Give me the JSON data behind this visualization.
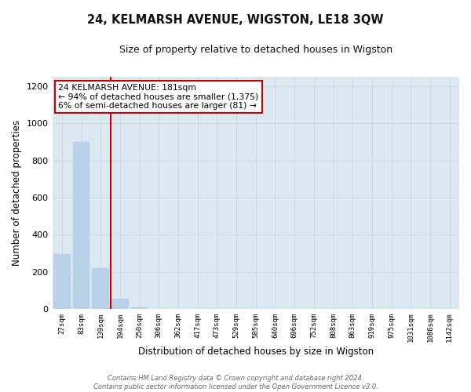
{
  "title": "24, KELMARSH AVENUE, WIGSTON, LE18 3QW",
  "subtitle": "Size of property relative to detached houses in Wigston",
  "xlabel": "Distribution of detached houses by size in Wigston",
  "ylabel": "Number of detached properties",
  "bar_labels": [
    "27sqm",
    "83sqm",
    "139sqm",
    "194sqm",
    "250sqm",
    "306sqm",
    "362sqm",
    "417sqm",
    "473sqm",
    "529sqm",
    "585sqm",
    "640sqm",
    "696sqm",
    "752sqm",
    "808sqm",
    "863sqm",
    "919sqm",
    "975sqm",
    "1031sqm",
    "1086sqm",
    "1142sqm"
  ],
  "bar_values": [
    295,
    900,
    220,
    55,
    10,
    0,
    0,
    0,
    0,
    0,
    0,
    0,
    0,
    0,
    0,
    0,
    0,
    0,
    0,
    0,
    0
  ],
  "bar_color": "#b8d0e8",
  "bar_edge_color": "#b8d0e8",
  "vline_color": "#cc0000",
  "vline_pos": 2.5,
  "ylim": [
    0,
    1250
  ],
  "yticks": [
    0,
    200,
    400,
    600,
    800,
    1000,
    1200
  ],
  "annotation_title": "24 KELMARSH AVENUE: 181sqm",
  "annotation_line1": "← 94% of detached houses are smaller (1,375)",
  "annotation_line2": "6% of semi-detached houses are larger (81) →",
  "annotation_box_color": "#ffffff",
  "annotation_box_edge": "#cc0000",
  "footer_line1": "Contains HM Land Registry data © Crown copyright and database right 2024.",
  "footer_line2": "Contains public sector information licensed under the Open Government Licence v3.0.",
  "background_color": "#ffffff",
  "axes_bg_color": "#dce8f0",
  "grid_color": "#c8d8e8"
}
